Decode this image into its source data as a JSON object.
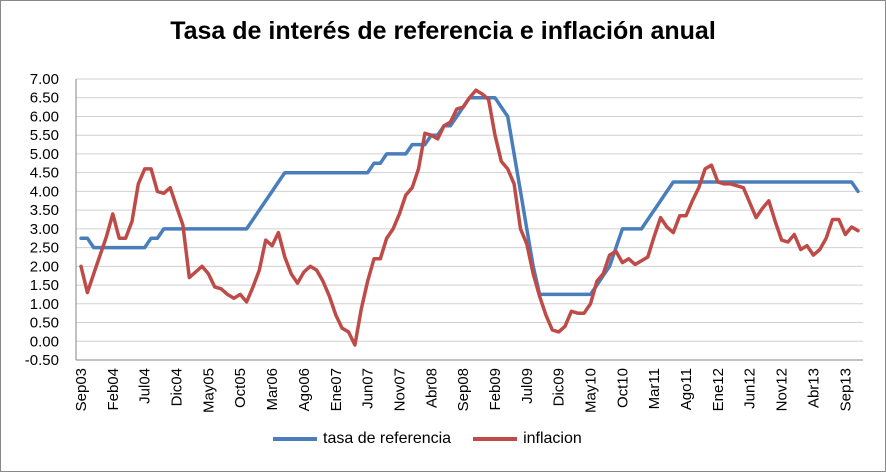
{
  "colors": {
    "series_1": "#4a7ebb",
    "series_2": "#be4b48",
    "grid": "#d0d0d0",
    "axis": "#868686"
  },
  "chart_data": {
    "type": "line",
    "title": "Tasa de interés de referencia e inflación anual",
    "xlabel": "",
    "ylabel": "",
    "ylim": [
      -0.5,
      7.0
    ],
    "grid": true,
    "legend_position": "bottom",
    "yticks": [
      "-0.50",
      "0.00",
      "0.50",
      "1.00",
      "1.50",
      "2.00",
      "2.50",
      "3.00",
      "3.50",
      "4.00",
      "4.50",
      "5.00",
      "5.50",
      "6.00",
      "6.50",
      "7.00"
    ],
    "xticks": [
      {
        "i": 0,
        "label": "Sep03"
      },
      {
        "i": 5,
        "label": "Feb04"
      },
      {
        "i": 10,
        "label": "Jul04"
      },
      {
        "i": 15,
        "label": "Dic04"
      },
      {
        "i": 20,
        "label": "May05"
      },
      {
        "i": 25,
        "label": "Oct05"
      },
      {
        "i": 30,
        "label": "Mar06"
      },
      {
        "i": 35,
        "label": "Ago06"
      },
      {
        "i": 40,
        "label": "Ene07"
      },
      {
        "i": 45,
        "label": "Jun07"
      },
      {
        "i": 50,
        "label": "Nov07"
      },
      {
        "i": 55,
        "label": "Abr08"
      },
      {
        "i": 60,
        "label": "Sep08"
      },
      {
        "i": 65,
        "label": "Feb09"
      },
      {
        "i": 70,
        "label": "Jul09"
      },
      {
        "i": 75,
        "label": "Dic09"
      },
      {
        "i": 80,
        "label": "May10"
      },
      {
        "i": 85,
        "label": "Oct10"
      },
      {
        "i": 90,
        "label": "Mar11"
      },
      {
        "i": 95,
        "label": "Ago11"
      },
      {
        "i": 100,
        "label": "Ene12"
      },
      {
        "i": 105,
        "label": "Jun12"
      },
      {
        "i": 110,
        "label": "Nov12"
      },
      {
        "i": 115,
        "label": "Abr13"
      },
      {
        "i": 120,
        "label": "Sep13"
      }
    ],
    "series": [
      {
        "name": "tasa de referencia",
        "values": [
          2.75,
          2.75,
          2.5,
          2.5,
          2.5,
          2.5,
          2.5,
          2.5,
          2.5,
          2.5,
          2.5,
          2.75,
          2.75,
          3.0,
          3.0,
          3.0,
          3.0,
          3.0,
          3.0,
          3.0,
          3.0,
          3.0,
          3.0,
          3.0,
          3.0,
          3.0,
          3.0,
          3.25,
          3.5,
          3.75,
          4.0,
          4.25,
          4.5,
          4.5,
          4.5,
          4.5,
          4.5,
          4.5,
          4.5,
          4.5,
          4.5,
          4.5,
          4.5,
          4.5,
          4.5,
          4.5,
          4.75,
          4.75,
          5.0,
          5.0,
          5.0,
          5.0,
          5.25,
          5.25,
          5.25,
          5.5,
          5.5,
          5.75,
          5.75,
          6.0,
          6.25,
          6.5,
          6.5,
          6.5,
          6.5,
          6.5,
          6.25,
          6.0,
          5.0,
          4.0,
          3.0,
          2.0,
          1.25,
          1.25,
          1.25,
          1.25,
          1.25,
          1.25,
          1.25,
          1.25,
          1.25,
          1.5,
          1.75,
          2.0,
          2.5,
          3.0,
          3.0,
          3.0,
          3.0,
          3.25,
          3.5,
          3.75,
          4.0,
          4.25,
          4.25,
          4.25,
          4.25,
          4.25,
          4.25,
          4.25,
          4.25,
          4.25,
          4.25,
          4.25,
          4.25,
          4.25,
          4.25,
          4.25,
          4.25,
          4.25,
          4.25,
          4.25,
          4.25,
          4.25,
          4.25,
          4.25,
          4.25,
          4.25,
          4.25,
          4.25,
          4.25,
          4.25,
          4.0
        ]
      },
      {
        "name": "inflacion",
        "values": [
          2.0,
          1.3,
          1.8,
          2.3,
          2.8,
          3.4,
          2.75,
          2.75,
          3.2,
          4.2,
          4.6,
          4.6,
          4.0,
          3.95,
          4.1,
          3.6,
          3.1,
          1.7,
          1.85,
          2.0,
          1.8,
          1.45,
          1.4,
          1.25,
          1.15,
          1.25,
          1.05,
          1.45,
          1.9,
          2.7,
          2.55,
          2.9,
          2.25,
          1.8,
          1.55,
          1.85,
          2.0,
          1.9,
          1.6,
          1.2,
          0.7,
          0.35,
          0.25,
          -0.1,
          0.85,
          1.6,
          2.2,
          2.2,
          2.75,
          3.0,
          3.4,
          3.9,
          4.1,
          4.6,
          5.55,
          5.5,
          5.4,
          5.75,
          5.85,
          6.2,
          6.25,
          6.5,
          6.7,
          6.6,
          6.45,
          5.5,
          4.8,
          4.6,
          4.2,
          3.0,
          2.6,
          1.8,
          1.2,
          0.7,
          0.3,
          0.25,
          0.4,
          0.8,
          0.75,
          0.75,
          1.0,
          1.6,
          1.8,
          2.3,
          2.4,
          2.1,
          2.2,
          2.05,
          2.15,
          2.25,
          2.8,
          3.3,
          3.05,
          2.9,
          3.35,
          3.35,
          3.75,
          4.1,
          4.6,
          4.7,
          4.25,
          4.2,
          4.2,
          4.15,
          4.1,
          3.7,
          3.3,
          3.55,
          3.75,
          3.2,
          2.7,
          2.65,
          2.85,
          2.45,
          2.55,
          2.3,
          2.45,
          2.75,
          3.25,
          3.25,
          2.85,
          3.05,
          2.95
        ]
      }
    ]
  }
}
